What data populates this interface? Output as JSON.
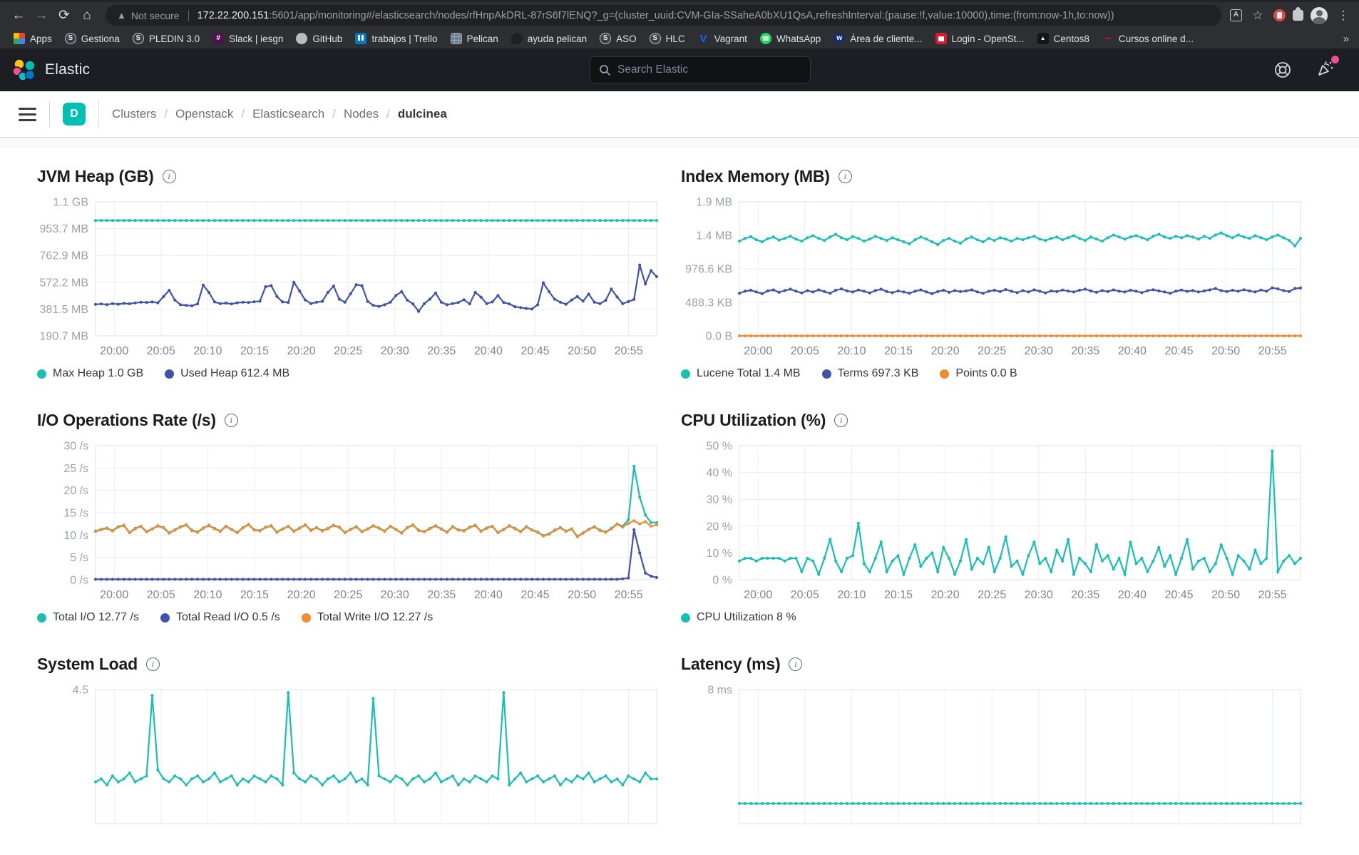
{
  "browser": {
    "security_label": "Not secure",
    "url_host": "172.22.200.151",
    "url_rest": ":5601/app/monitoring#/elasticsearch/nodes/rfHnpAkDRL-87rS6f7lENQ?_g=(cluster_uuid:CVM-GIa-SSaheA0bXU1QsA,refreshInterval:(pause:!f,value:10000),time:(from:now-1h,to:now))",
    "overflow_chevron": "»",
    "bookmarks": [
      {
        "label": "Apps",
        "icon": "apps-grid"
      },
      {
        "label": "Gestiona",
        "icon": "globe-s"
      },
      {
        "label": "PLEDIN 3.0",
        "icon": "globe-s"
      },
      {
        "label": "Slack | iesgn",
        "icon": "slack"
      },
      {
        "label": "GitHub",
        "icon": "github"
      },
      {
        "label": "trabajos | Trello",
        "icon": "trello"
      },
      {
        "label": "Pelican",
        "icon": "pelican"
      },
      {
        "label": "ayuda pelican",
        "icon": "bird"
      },
      {
        "label": "ASO",
        "icon": "globe-s"
      },
      {
        "label": "HLC",
        "icon": "globe-s"
      },
      {
        "label": "Vagrant",
        "icon": "vagrant"
      },
      {
        "label": "WhatsApp",
        "icon": "whatsapp"
      },
      {
        "label": "Área de cliente...",
        "icon": "client"
      },
      {
        "label": "Login - OpenSt...",
        "icon": "openstack"
      },
      {
        "label": "Centos8",
        "icon": "centos"
      },
      {
        "label": "Cursos online d...",
        "icon": "wave"
      }
    ]
  },
  "header": {
    "brand": "Elastic",
    "search_placeholder": "Search Elastic"
  },
  "breadcrumb": {
    "space_badge": "D",
    "items": [
      "Clusters",
      "Openstack",
      "Elasticsearch",
      "Nodes"
    ],
    "current": "dulcinea"
  },
  "colors": {
    "accent_teal": "#00bfb3",
    "series_teal": "#17bfb4",
    "series_blue": "#4053ab",
    "series_orange": "#ef8b30",
    "notification_pink": "#f04e98"
  },
  "chart_data": [
    {
      "type": "line",
      "title": "JVM Heap (GB)",
      "y_ticks": [
        "1.1 GB",
        "953.7 MB",
        "762.9 MB",
        "572.2 MB",
        "381.5 MB",
        "190.7 MB"
      ],
      "x_labels": [
        "20:00",
        "20:05",
        "20:10",
        "20:15",
        "20:20",
        "20:25",
        "20:30",
        "20:35",
        "20:40",
        "20:45",
        "20:50",
        "20:55"
      ],
      "ymin": 190.7,
      "ymax": 1144.4,
      "unit": "MB",
      "grid": true,
      "legend_position": "bottom",
      "series": [
        {
          "name": "Max Heap 1.0 GB",
          "color": "#17bfb4",
          "const": 1011.3,
          "count": 100
        },
        {
          "name": "Used Heap 612.4 MB",
          "color": "#4053ab",
          "values": [
            415,
            418,
            413,
            420,
            416,
            422,
            419,
            425,
            430,
            428,
            432,
            426,
            470,
            515,
            445,
            412,
            408,
            405,
            418,
            552,
            500,
            432,
            420,
            424,
            418,
            426,
            430,
            428,
            433,
            437,
            540,
            548,
            470,
            432,
            428,
            572,
            510,
            446,
            420,
            430,
            436,
            500,
            545,
            452,
            430,
            490,
            555,
            548,
            436,
            408,
            400,
            412,
            430,
            478,
            505,
            445,
            418,
            365,
            420,
            452,
            495,
            430,
            412,
            420,
            428,
            448,
            418,
            500,
            466,
            420,
            432,
            478,
            428,
            418,
            398,
            392,
            386,
            382,
            412,
            568,
            505,
            452,
            430,
            416,
            446,
            470,
            438,
            488,
            430,
            420,
            444,
            524,
            468,
            420,
            434,
            450,
            695,
            560,
            655,
            612
          ]
        }
      ]
    },
    {
      "type": "line",
      "title": "Index Memory (MB)",
      "y_ticks": [
        "1.9 MB",
        "1.4 MB",
        "976.6 KB",
        "488.3 KB",
        "0.0 B"
      ],
      "x_labels": [
        "20:00",
        "20:05",
        "20:10",
        "20:15",
        "20:20",
        "20:25",
        "20:30",
        "20:35",
        "20:40",
        "20:45",
        "20:50",
        "20:55"
      ],
      "ymin": 0,
      "ymax": 1953.1,
      "unit": "KB",
      "grid": true,
      "legend_position": "bottom",
      "series": [
        {
          "name": "Lucene Total 1.4 MB",
          "color": "#17bfb4",
          "values": [
            1380,
            1420,
            1445,
            1400,
            1370,
            1415,
            1440,
            1395,
            1420,
            1450,
            1410,
            1380,
            1430,
            1460,
            1420,
            1390,
            1440,
            1480,
            1430,
            1400,
            1445,
            1420,
            1380,
            1410,
            1450,
            1420,
            1390,
            1430,
            1400,
            1370,
            1340,
            1400,
            1440,
            1410,
            1370,
            1330,
            1390,
            1420,
            1380,
            1350,
            1410,
            1440,
            1400,
            1370,
            1420,
            1390,
            1430,
            1410,
            1380,
            1420,
            1400,
            1430,
            1450,
            1410,
            1390,
            1420,
            1440,
            1400,
            1430,
            1460,
            1420,
            1390,
            1440,
            1410,
            1380,
            1430,
            1470,
            1440,
            1410,
            1440,
            1460,
            1430,
            1400,
            1450,
            1480,
            1440,
            1420,
            1450,
            1430,
            1460,
            1440,
            1410,
            1450,
            1420,
            1470,
            1500,
            1460,
            1430,
            1470,
            1440,
            1420,
            1460,
            1430,
            1400,
            1440,
            1470,
            1430,
            1390,
            1310,
            1420
          ]
        },
        {
          "name": "Terms 697.3 KB",
          "color": "#4053ab",
          "values": [
            620,
            650,
            665,
            640,
            615,
            655,
            670,
            635,
            660,
            680,
            650,
            625,
            660,
            640,
            670,
            645,
            620,
            665,
            685,
            655,
            640,
            668,
            650,
            625,
            660,
            680,
            645,
            630,
            655,
            640,
            620,
            650,
            670,
            640,
            615,
            645,
            665,
            635,
            660,
            645,
            655,
            670,
            640,
            620,
            650,
            665,
            645,
            675,
            650,
            630,
            660,
            640,
            670,
            650,
            625,
            655,
            645,
            668,
            652,
            640,
            665,
            680,
            655,
            635,
            660,
            645,
            670,
            650,
            640,
            665,
            650,
            630,
            658,
            672,
            655,
            640,
            620,
            650,
            668,
            648,
            660,
            640,
            655,
            670,
            690,
            660,
            645,
            665,
            650,
            672,
            655,
            640,
            668,
            650,
            700,
            685,
            660,
            645,
            690,
            697
          ]
        },
        {
          "name": "Points 0.0 B",
          "color": "#ef8b30",
          "const": 0,
          "count": 100
        }
      ]
    },
    {
      "type": "line",
      "title": "I/O Operations Rate (/s)",
      "y_ticks": [
        "30 /s",
        "25 /s",
        "20 /s",
        "15 /s",
        "10 /s",
        "5 /s",
        "0 /s"
      ],
      "x_labels": [
        "20:00",
        "20:05",
        "20:10",
        "20:15",
        "20:20",
        "20:25",
        "20:30",
        "20:35",
        "20:40",
        "20:45",
        "20:50",
        "20:55"
      ],
      "ymin": 0,
      "ymax": 30,
      "unit": "/s",
      "grid": true,
      "legend_position": "bottom",
      "series": [
        {
          "name": "Total I/O 12.77 /s",
          "color": "#17bfb4",
          "values": [
            10.9,
            11.3,
            11.6,
            11.0,
            11.9,
            12.2,
            10.6,
            11.5,
            12.0,
            10.8,
            11.4,
            12.1,
            11.7,
            10.5,
            11.2,
            11.9,
            12.3,
            11.1,
            10.7,
            11.6,
            12.2,
            11.5,
            10.9,
            12.0,
            11.3,
            10.6,
            11.7,
            12.4,
            11.2,
            11.0,
            11.8,
            12.1,
            10.7,
            11.4,
            12.0,
            10.9,
            11.6,
            12.3,
            11.1,
            11.7,
            11.0,
            11.5,
            12.2,
            11.8,
            10.6,
            11.3,
            11.9,
            10.8,
            11.4,
            12.1,
            11.6,
            10.9,
            12.0,
            11.3,
            10.5,
            11.7,
            12.3,
            11.1,
            10.8,
            11.5,
            12.1,
            11.4,
            10.7,
            11.9,
            11.2,
            11.0,
            11.8,
            12.2,
            10.9,
            11.6,
            12.0,
            10.6,
            11.3,
            12.1,
            11.5,
            10.8,
            11.9,
            11.2,
            10.7,
            9.9,
            10.3,
            11.1,
            11.7,
            10.9,
            11.4,
            9.7,
            10.5,
            11.3,
            11.9,
            11.1,
            10.7,
            11.5,
            12.5,
            12.0,
            13.4,
            25.4,
            18.5,
            14.5,
            12.8,
            12.8
          ]
        },
        {
          "name": "Total Read I/O 0.5 /s",
          "color": "#4053ab",
          "values": [
            0.1,
            0.1,
            0.1,
            0.1,
            0.1,
            0.1,
            0.1,
            0.1,
            0.1,
            0.1,
            0.1,
            0.1,
            0.1,
            0.1,
            0.1,
            0.1,
            0.1,
            0.1,
            0.1,
            0.1,
            0.1,
            0.1,
            0.1,
            0.1,
            0.1,
            0.1,
            0.1,
            0.1,
            0.1,
            0.1,
            0.1,
            0.1,
            0.1,
            0.1,
            0.1,
            0.1,
            0.1,
            0.1,
            0.1,
            0.1,
            0.1,
            0.1,
            0.1,
            0.1,
            0.1,
            0.1,
            0.1,
            0.1,
            0.1,
            0.1,
            0.1,
            0.1,
            0.1,
            0.1,
            0.1,
            0.1,
            0.1,
            0.1,
            0.1,
            0.1,
            0.1,
            0.1,
            0.1,
            0.1,
            0.1,
            0.1,
            0.1,
            0.1,
            0.1,
            0.1,
            0.1,
            0.1,
            0.1,
            0.1,
            0.1,
            0.1,
            0.1,
            0.1,
            0.1,
            0.1,
            0.1,
            0.1,
            0.1,
            0.1,
            0.1,
            0.1,
            0.1,
            0.1,
            0.1,
            0.1,
            0.1,
            0.1,
            0.1,
            0.2,
            0.4,
            11.2,
            6.0,
            1.5,
            0.8,
            0.5
          ]
        },
        {
          "name": "Total Write I/O 12.27 /s",
          "color": "#ef8b30",
          "values": [
            10.8,
            11.2,
            11.5,
            10.9,
            11.8,
            12.1,
            10.5,
            11.4,
            11.9,
            10.7,
            11.3,
            12.0,
            11.6,
            10.4,
            11.1,
            11.8,
            12.2,
            11.0,
            10.6,
            11.5,
            12.1,
            11.4,
            10.8,
            11.9,
            11.2,
            10.5,
            11.6,
            12.3,
            11.1,
            10.9,
            11.7,
            12.0,
            10.6,
            11.3,
            11.9,
            10.8,
            11.5,
            12.2,
            11.0,
            11.6,
            10.9,
            11.4,
            12.1,
            11.7,
            10.5,
            11.2,
            11.8,
            10.7,
            11.3,
            12.0,
            11.5,
            10.8,
            11.9,
            11.2,
            10.4,
            11.6,
            12.2,
            11.0,
            10.7,
            11.4,
            12.0,
            11.3,
            10.6,
            11.8,
            11.1,
            10.9,
            11.7,
            12.1,
            10.8,
            11.5,
            11.9,
            10.5,
            11.2,
            12.0,
            11.4,
            10.7,
            11.8,
            11.1,
            10.6,
            9.8,
            10.2,
            11.0,
            11.6,
            10.8,
            11.3,
            9.6,
            10.4,
            11.2,
            11.8,
            11.0,
            10.6,
            11.4,
            12.4,
            11.8,
            12.6,
            13.2,
            12.5,
            13.0,
            12.0,
            12.3
          ]
        }
      ]
    },
    {
      "type": "line",
      "title": "CPU Utilization (%)",
      "y_ticks": [
        "50 %",
        "40 %",
        "30 %",
        "20 %",
        "10 %",
        "0 %"
      ],
      "x_labels": [
        "20:00",
        "20:05",
        "20:10",
        "20:15",
        "20:20",
        "20:25",
        "20:30",
        "20:35",
        "20:40",
        "20:45",
        "20:50",
        "20:55"
      ],
      "ymin": 0,
      "ymax": 50,
      "unit": "%",
      "grid": true,
      "legend_position": "bottom",
      "series": [
        {
          "name": "CPU Utilization 8 %",
          "color": "#17bfb4",
          "values": [
            7,
            8,
            8,
            7,
            8,
            8,
            8,
            8,
            7,
            8,
            8,
            3,
            8,
            7,
            2,
            8,
            15,
            7,
            3,
            8,
            9,
            21,
            6,
            3,
            8,
            14,
            3,
            7,
            9,
            2,
            8,
            13,
            5,
            8,
            10,
            3,
            12,
            8,
            2,
            7,
            15,
            4,
            8,
            6,
            12,
            3,
            8,
            16,
            5,
            7,
            2,
            9,
            14,
            6,
            8,
            3,
            11,
            7,
            15,
            2,
            8,
            6,
            3,
            13,
            7,
            9,
            4,
            8,
            2,
            14,
            6,
            8,
            3,
            7,
            12,
            5,
            9,
            2,
            8,
            15,
            4,
            7,
            8,
            3,
            6,
            13,
            8,
            2,
            9,
            7,
            4,
            11,
            6,
            8,
            48,
            3,
            7,
            9,
            6,
            8
          ]
        }
      ]
    },
    {
      "type": "line",
      "title": "System Load",
      "y_ticks": [
        "4.5"
      ],
      "ymin": 0,
      "ymax": 4.5,
      "grid": true,
      "show_legend": false,
      "series": [
        {
          "name": "System Load",
          "color": "#17bfb4",
          "values": [
            1.4,
            1.5,
            1.3,
            1.6,
            1.4,
            1.5,
            1.7,
            1.4,
            1.5,
            1.6,
            4.3,
            1.8,
            1.5,
            1.4,
            1.6,
            1.5,
            1.3,
            1.5,
            1.6,
            1.4,
            1.5,
            1.7,
            1.4,
            1.5,
            1.6,
            1.3,
            1.5,
            1.4,
            1.6,
            1.5,
            1.4,
            1.6,
            1.5,
            1.3,
            4.4,
            1.7,
            1.5,
            1.4,
            1.6,
            1.5,
            1.3,
            1.5,
            1.6,
            1.4,
            1.5,
            1.7,
            1.4,
            1.5,
            1.3,
            4.2,
            1.6,
            1.5,
            1.4,
            1.6,
            1.5,
            1.3,
            1.5,
            1.6,
            1.4,
            1.5,
            1.7,
            1.4,
            1.5,
            1.6,
            1.3,
            1.5,
            1.4,
            1.6,
            1.5,
            1.4,
            1.6,
            1.5,
            4.4,
            1.3,
            1.5,
            1.7,
            1.4,
            1.5,
            1.6,
            1.4,
            1.5,
            1.6,
            1.3,
            1.5,
            1.4,
            1.6,
            1.5,
            1.7,
            1.4,
            1.5,
            1.6,
            1.4,
            1.5,
            1.3,
            1.6,
            1.5,
            1.4,
            1.7,
            1.5,
            1.5
          ]
        }
      ]
    },
    {
      "type": "line",
      "title": "Latency (ms)",
      "y_ticks": [
        "8 ms"
      ],
      "ymin": 0,
      "ymax": 8,
      "grid": true,
      "show_legend": false,
      "series": [
        {
          "name": "Latency",
          "color": "#17bfb4",
          "const": 1.2,
          "count": 100
        }
      ]
    }
  ]
}
